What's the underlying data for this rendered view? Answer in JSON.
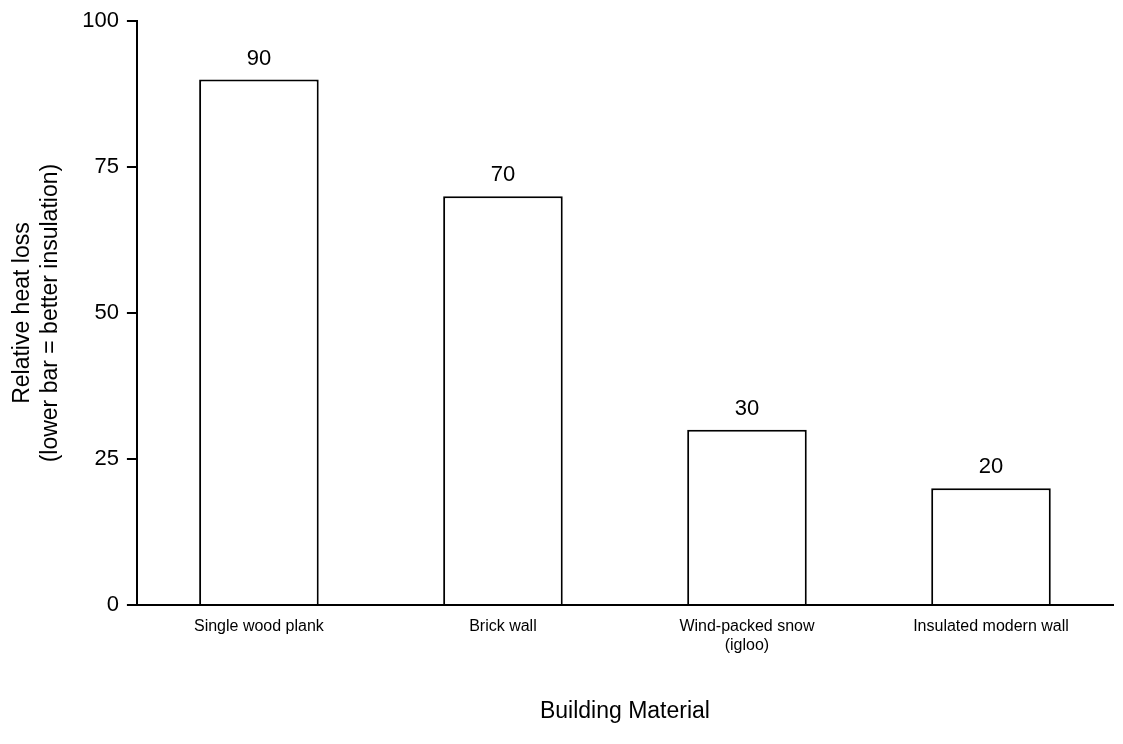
{
  "chart_data": {
    "type": "bar",
    "categories": [
      "Single wood plank",
      "Brick wall",
      "Wind-packed snow\n(igloo)",
      "Insulated modern wall"
    ],
    "values": [
      90,
      70,
      30,
      20
    ],
    "color": "#ffffff",
    "xlabel": "Building Material",
    "ylabel": "Relative heat loss\n(lower bar = better insulation)",
    "ylim": [
      0,
      100
    ],
    "yticks": [
      0,
      25,
      50,
      75,
      100
    ],
    "grid": false,
    "legend": false,
    "data_labels": true
  }
}
